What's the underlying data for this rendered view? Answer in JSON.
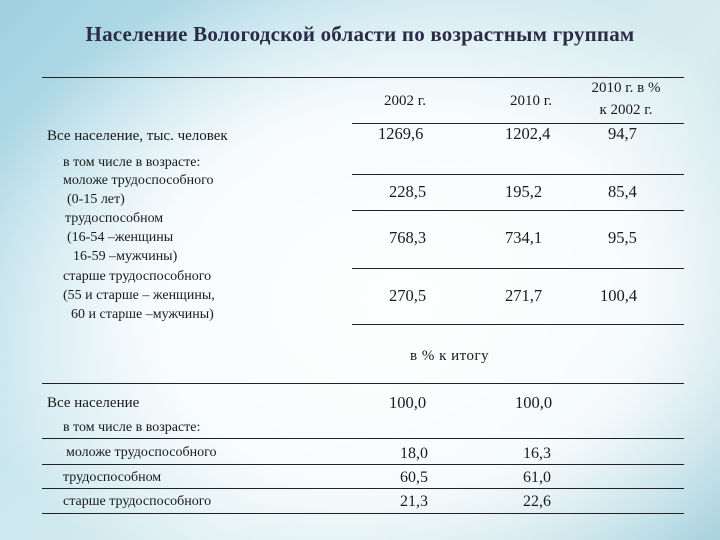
{
  "title": "Население Вологодской области по возрастным группам",
  "table1": {
    "col_2002": "2002 г.",
    "col_2010": "2010 г.",
    "col_pct_line1": "2010 г. в %",
    "col_pct_line2": "к 2002 г.",
    "rows": [
      {
        "label_lines": [
          "Все население, тыс. человек"
        ],
        "v2002": "1269,6",
        "v2010": "1202,4",
        "pct": "94,7"
      },
      {
        "label_lines": [
          "в том числе в возрасте:"
        ]
      },
      {
        "label_lines": [
          "моложе трудоспособного",
          "(0-15 лет)"
        ],
        "v2002": "228,5",
        "v2010": "195,2",
        "pct": "85,4"
      },
      {
        "label_lines": [
          "трудоспособном",
          "(16-54 –женщины",
          "16-59 –мужчины)"
        ],
        "v2002": "768,3",
        "v2010": "734,1",
        "pct": "95,5"
      },
      {
        "label_lines": [
          "старше трудоспособного",
          "(55 и старше – женщины,",
          "60 и старше –мужчины)"
        ],
        "v2002": "270,5",
        "v2010": "271,7",
        "pct": "100,4"
      }
    ]
  },
  "table2": {
    "subtitle": "в % к итогу",
    "rows": [
      {
        "label": "Все население",
        "v2002": "100,0",
        "v2010": "100,0"
      },
      {
        "label": "в том числе в возрасте:"
      },
      {
        "label": "моложе трудоспособного",
        "v2002": "18,0",
        "v2010": "16,3"
      },
      {
        "label": "трудоспособном",
        "v2002": "60,5",
        "v2010": "61,0"
      },
      {
        "label": "старше трудоспособного",
        "v2002": "21,3",
        "v2010": "22,6"
      }
    ]
  }
}
